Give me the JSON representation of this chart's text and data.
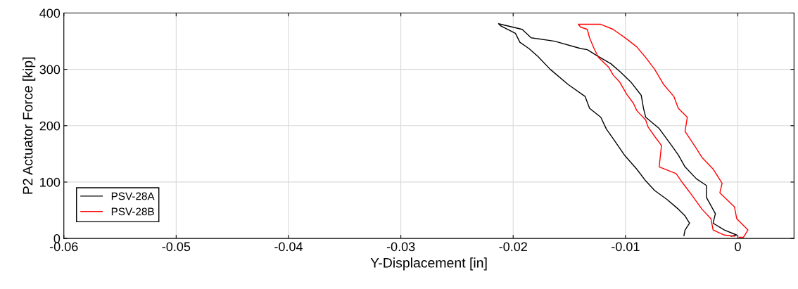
{
  "chart_data": {
    "type": "line",
    "xlabel": "Y-Displacement [in]",
    "ylabel": "P2 Actuator Force [kip]",
    "xlim": [
      -0.06,
      0.005
    ],
    "xticks": [
      -0.06,
      -0.05,
      -0.04,
      -0.03,
      -0.02,
      -0.01,
      0
    ],
    "ylim": [
      0,
      400
    ],
    "yticks": [
      0,
      100,
      200,
      300,
      400
    ],
    "grid": true,
    "legend": "bottom left",
    "series": [
      {
        "name": "PSV-28A",
        "color": "#000000",
        "x": [
          -0.0006,
          -0.0001,
          -0.0012,
          -0.0022,
          -0.002,
          -0.0028,
          -0.0028,
          -0.0037,
          -0.0047,
          -0.0053,
          -0.0059,
          -0.007,
          -0.0082,
          -0.0084,
          -0.0086,
          -0.0095,
          -0.0105,
          -0.0113,
          -0.0126,
          -0.0134,
          -0.014,
          -0.0163,
          -0.0184,
          -0.0192,
          -0.0213,
          -0.0211,
          -0.0198,
          -0.0194,
          -0.0186,
          -0.0178,
          -0.0167,
          -0.0151,
          -0.0136,
          -0.0132,
          -0.0122,
          -0.0117,
          -0.0111,
          -0.0101,
          -0.009,
          -0.0082,
          -0.0074,
          -0.0063,
          -0.0053,
          -0.0047,
          -0.0043,
          -0.0047,
          -0.0048
        ],
        "values": [
          4,
          6,
          15,
          27,
          44,
          73,
          94,
          106,
          127,
          148,
          165,
          195,
          215,
          231,
          254,
          277,
          296,
          310,
          325,
          335,
          337,
          350,
          356,
          371,
          381,
          377,
          364,
          348,
          337,
          323,
          300,
          273,
          252,
          231,
          215,
          194,
          177,
          148,
          123,
          102,
          85,
          69,
          52,
          40,
          27,
          15,
          5
        ]
      },
      {
        "name": "PSV-28B",
        "color": "#ff0000",
        "x": [
          0.0001,
          0.0005,
          0.0009,
          -0.0001,
          -0.0003,
          -0.0016,
          -0.0014,
          -0.0022,
          -0.0032,
          -0.0037,
          -0.0047,
          -0.0045,
          -0.0053,
          -0.0057,
          -0.0066,
          -0.0074,
          -0.0082,
          -0.009,
          -0.0099,
          -0.0111,
          -0.0122,
          -0.0142,
          -0.014,
          -0.0134,
          -0.0132,
          -0.0128,
          -0.0124,
          -0.0115,
          -0.0111,
          -0.0105,
          -0.0099,
          -0.0093,
          -0.009,
          -0.0082,
          -0.008,
          -0.0074,
          -0.0068,
          -0.007,
          -0.0055,
          -0.0049,
          -0.0041,
          -0.0032,
          -0.0024,
          -0.0022,
          -0.0012,
          -0.0003
        ],
        "values": [
          2,
          2,
          15,
          35,
          56,
          81,
          98,
          123,
          144,
          160,
          190,
          215,
          231,
          252,
          273,
          300,
          321,
          340,
          354,
          371,
          380,
          380,
          375,
          371,
          356,
          337,
          321,
          304,
          290,
          277,
          256,
          240,
          227,
          210,
          198,
          181,
          165,
          127,
          115,
          98,
          77,
          52,
          35,
          15,
          6,
          4
        ]
      }
    ]
  }
}
